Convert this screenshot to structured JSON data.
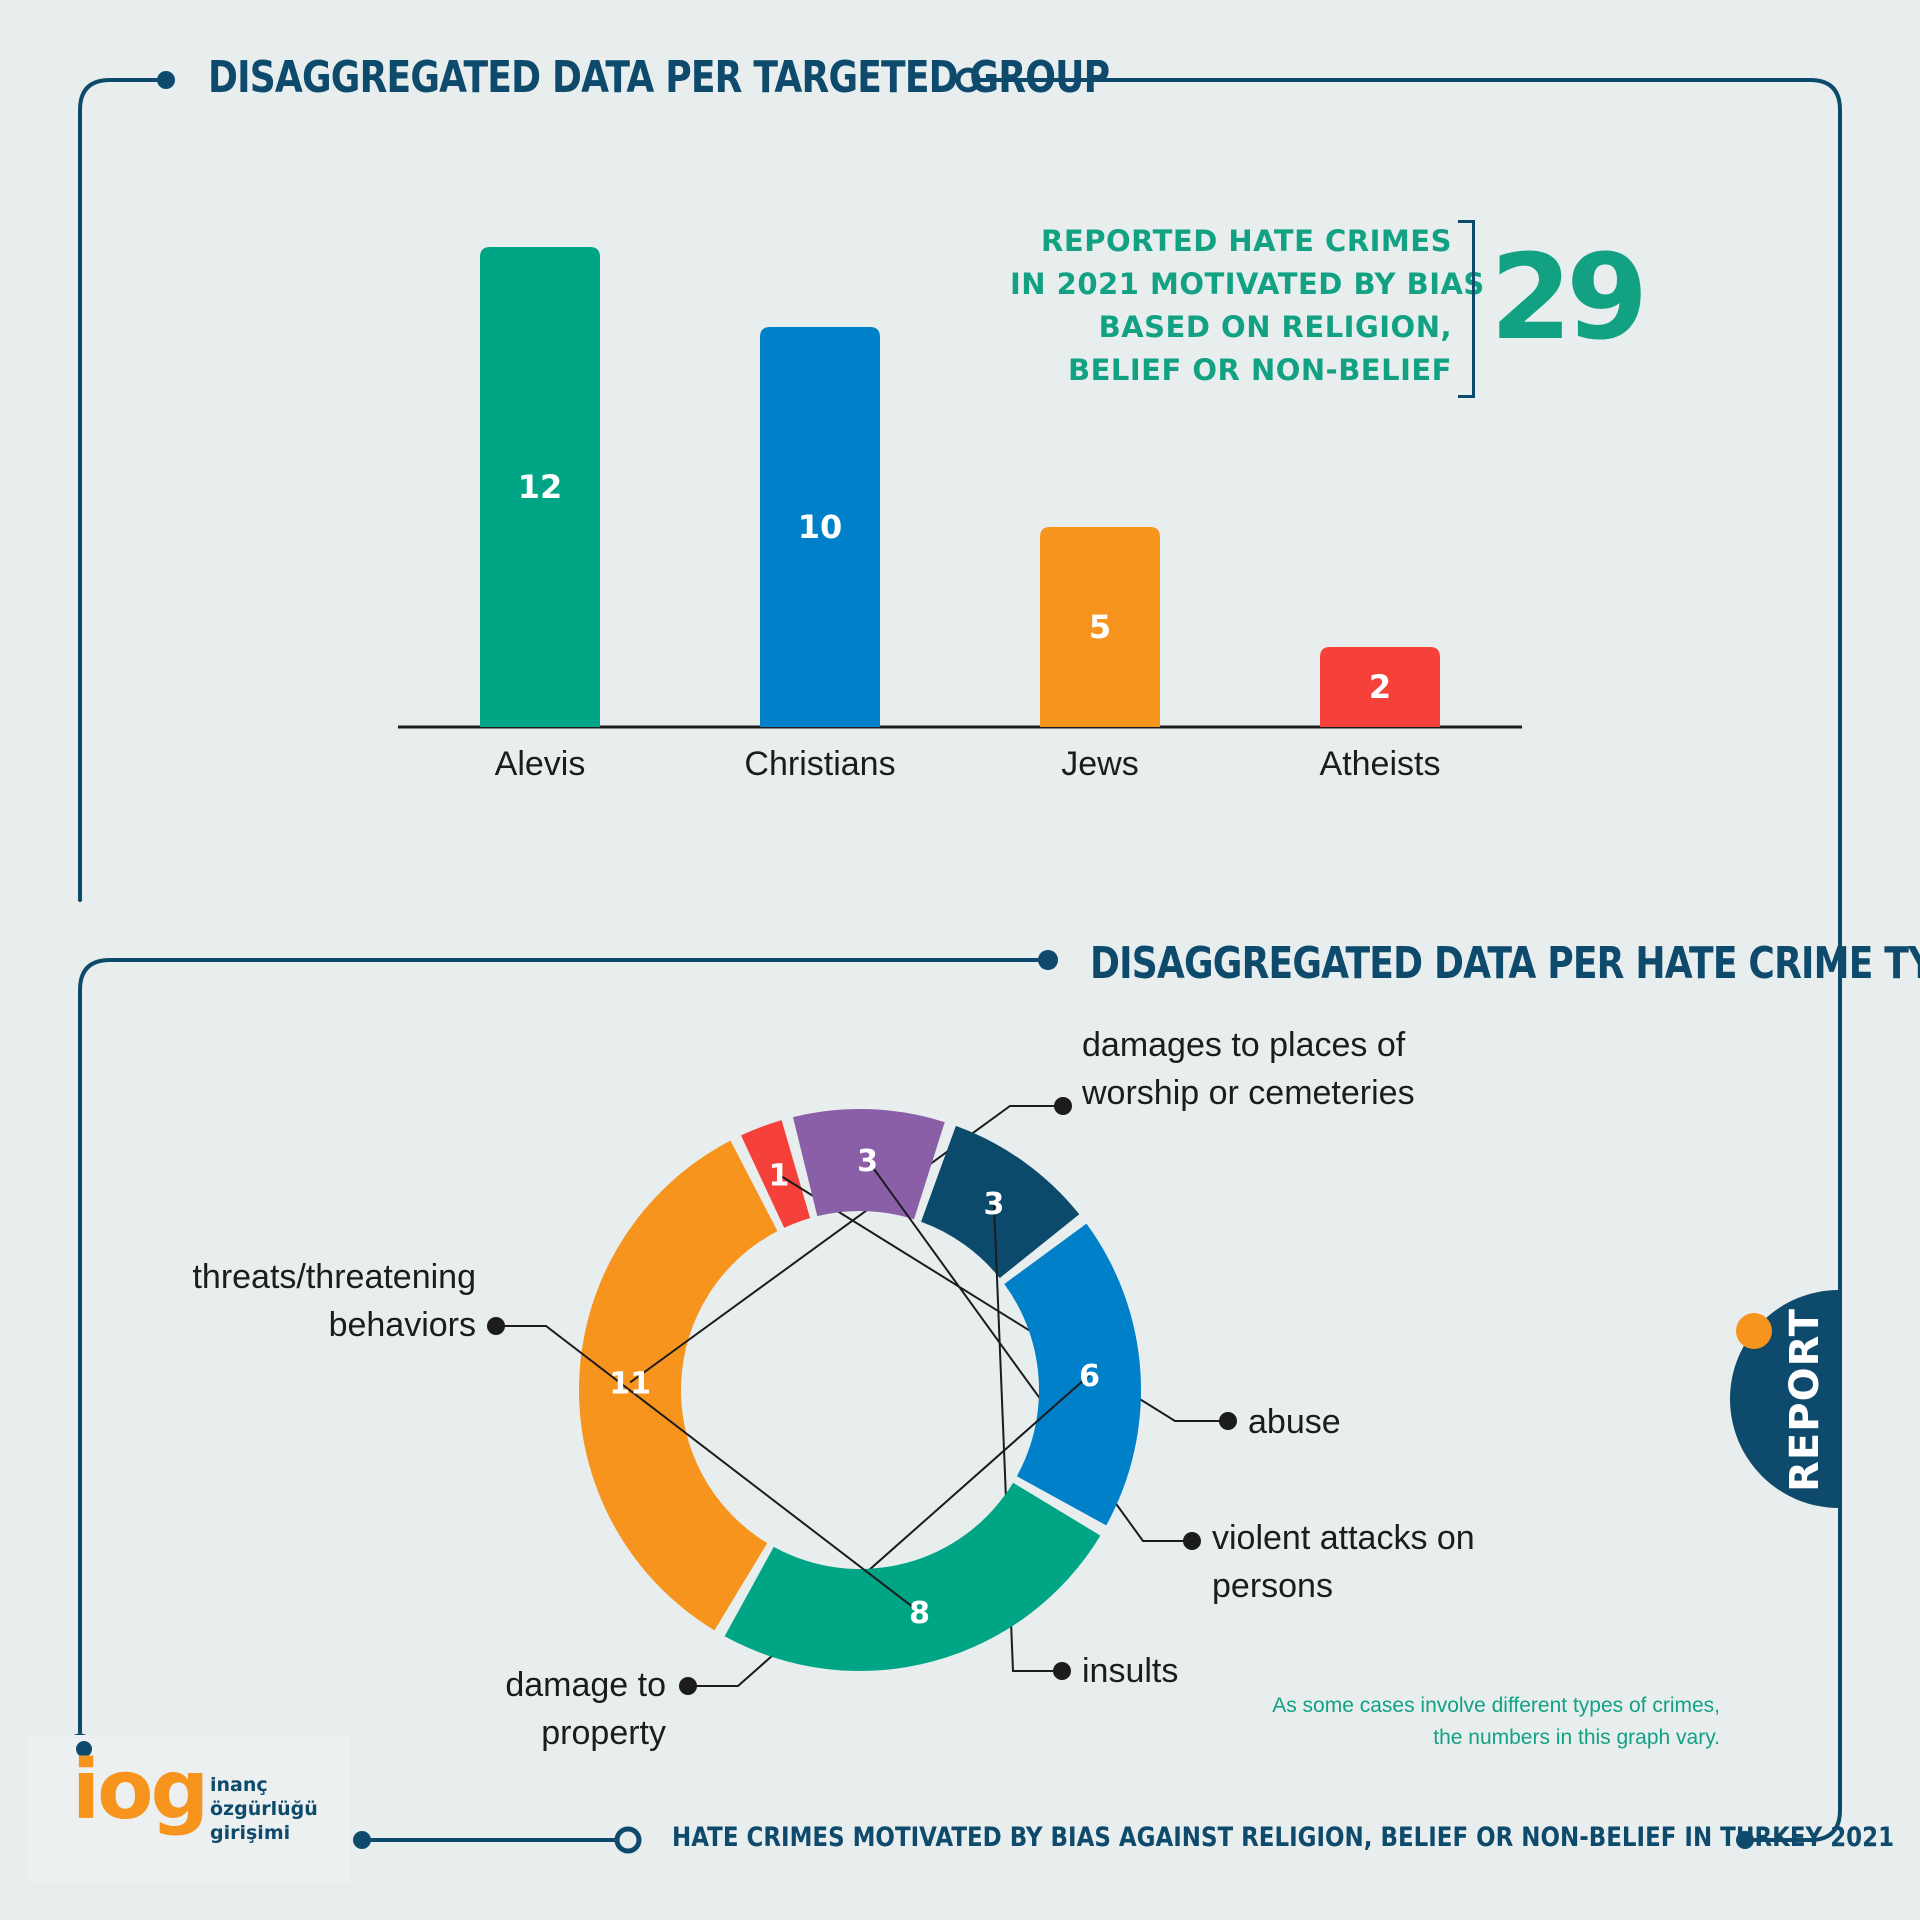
{
  "header": {
    "title_top": "DISAGGREGATED DATA PER TARGETED GROUP",
    "title_bottom": "DISAGGREGATED DATA PER HATE CRIME TYPE"
  },
  "total": {
    "lines": [
      "REPORTED HATE CRIMES",
      "IN 2021 MOTIVATED BY BIAS",
      "BASED ON RELIGION,",
      "BELIEF OR NON-BELIEF"
    ],
    "value": "29"
  },
  "chart_data": [
    {
      "type": "bar",
      "title": "DISAGGREGATED DATA PER TARGETED GROUP",
      "categories": [
        "Alevis",
        "Christians",
        "Jews",
        "Atheists"
      ],
      "values": [
        12,
        10,
        5,
        2
      ],
      "colors": [
        "#00a585",
        "#0080c8",
        "#f7941d",
        "#f5413a"
      ],
      "ylim": [
        0,
        12
      ],
      "grid": false,
      "data_labels": true
    },
    {
      "type": "pie",
      "donut": true,
      "title": "DISAGGREGATED DATA PER HATE CRIME TYPE",
      "slices": [
        {
          "label": "damages to places of worship or cemeteries",
          "lines": [
            "damages to places of",
            "worship or cemeteries"
          ],
          "value": 11,
          "color": "#f7941d"
        },
        {
          "label": "abuse",
          "lines": [
            "abuse"
          ],
          "value": 1,
          "color": "#f5413a"
        },
        {
          "label": "violent attacks on persons",
          "lines": [
            "violent attacks on",
            "persons"
          ],
          "value": 3,
          "color": "#8a5fa8"
        },
        {
          "label": "insults",
          "lines": [
            "insults"
          ],
          "value": 3,
          "color": "#0c4a6b"
        },
        {
          "label": "damage to property",
          "lines": [
            "damage to",
            "property"
          ],
          "value": 6,
          "color": "#0080c8"
        },
        {
          "label": "threats/threatening behaviors",
          "lines": [
            "threats/threatening",
            "behaviors"
          ],
          "value": 8,
          "color": "#00a585"
        }
      ]
    }
  ],
  "footnote": [
    "As some cases involve different types of crimes,",
    "the numbers in this graph vary."
  ],
  "footer": {
    "title": "HATE CRIMES MOTIVATED BY BIAS AGAINST RELIGION, BELIEF OR NON-BELIEF IN TURKEY 2021"
  },
  "logo": {
    "mark": "iog",
    "lines": [
      "inanç",
      "özgürlüğü",
      "girişimi"
    ]
  },
  "side_tab": {
    "label": "REPORT"
  },
  "colors": {
    "navy": "#0e4a6b",
    "green_text": "#12a283",
    "background": "#e8edee"
  }
}
